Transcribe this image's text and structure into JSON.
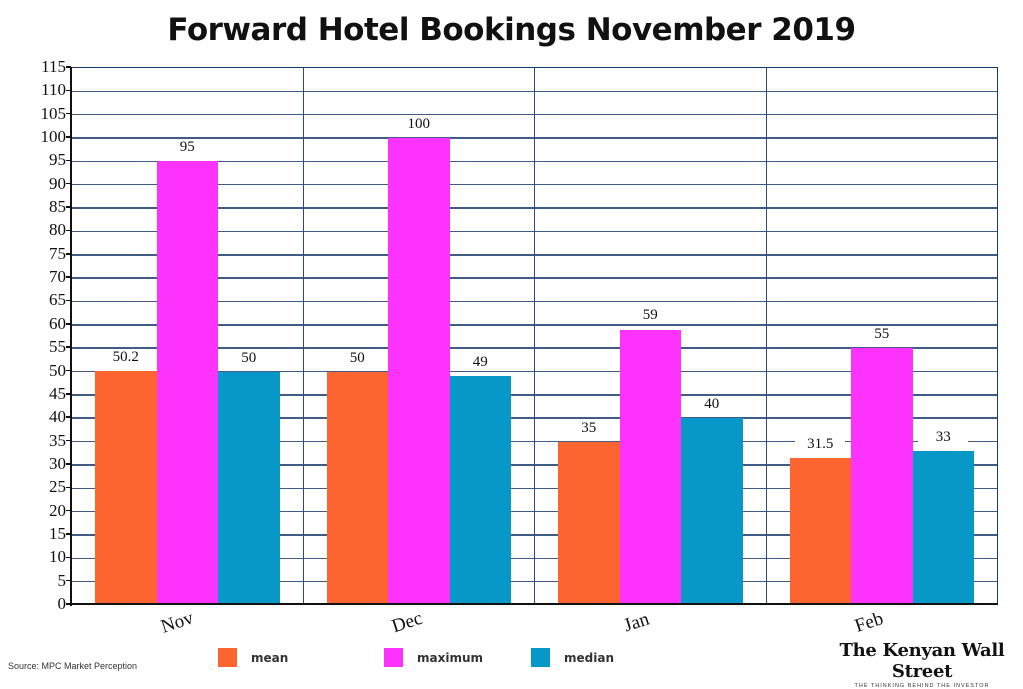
{
  "title": "Forward Hotel Bookings November 2019",
  "source": "Source: MPC Market Perception",
  "brand": {
    "name": "The Kenyan Wall Street",
    "tagline": "THE THINKING BEHIND THE INVESTOR"
  },
  "legend": [
    {
      "label": "mean",
      "color": "#fd6530"
    },
    {
      "label": "maximum",
      "color": "#fd33fd"
    },
    {
      "label": "median",
      "color": "#0898c8"
    }
  ],
  "chart_data": {
    "type": "bar",
    "title": "Forward Hotel Bookings November 2019",
    "categories": [
      "Nov",
      "Dec",
      "Jan",
      "Feb"
    ],
    "series": [
      {
        "name": "mean",
        "color": "#fd6530",
        "values": [
          50.2,
          50,
          35,
          31.5
        ],
        "labels": [
          "50.2",
          "50",
          "35",
          "31.5"
        ]
      },
      {
        "name": "maximum",
        "color": "#fd33fd",
        "values": [
          95,
          100,
          59,
          55
        ],
        "labels": [
          "95",
          "100",
          "59",
          "55"
        ]
      },
      {
        "name": "median",
        "color": "#0898c8",
        "values": [
          50,
          49,
          40,
          33
        ],
        "labels": [
          "50",
          "49",
          "40",
          "33"
        ]
      }
    ],
    "xlabel": "",
    "ylabel": "",
    "ylim": [
      0,
      115
    ],
    "yticks": [
      0,
      5,
      10,
      15,
      20,
      25,
      30,
      35,
      40,
      45,
      50,
      55,
      60,
      65,
      70,
      75,
      80,
      85,
      90,
      95,
      100,
      105,
      110,
      115
    ],
    "grid": true,
    "legend_position": "bottom"
  }
}
